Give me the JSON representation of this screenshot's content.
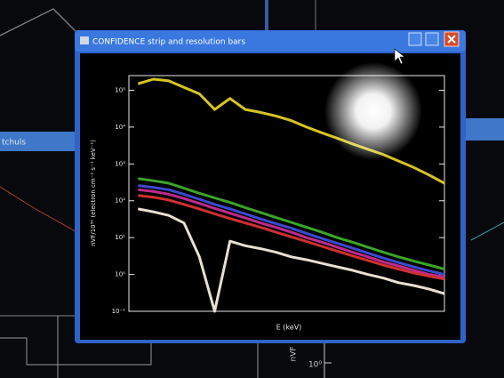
{
  "window": {
    "title": "CONFIDENCE strip and resolution bars"
  },
  "background": {
    "left_tab": "tchuls",
    "axis_label": "nVF",
    "tick": "10⁰"
  },
  "chart_data": {
    "type": "line",
    "xlabel": "E (keV)",
    "ylabel": "nVF/10⁵⁰ (electron cm⁻² s⁻¹ keV⁻¹)",
    "x": [
      0,
      1,
      2,
      3,
      4,
      5,
      6,
      7,
      8,
      9,
      10,
      11,
      12,
      13,
      14,
      15,
      16,
      17,
      18,
      19,
      20
    ],
    "xlim": [
      -0.6,
      20
    ],
    "ylim": [
      0.1,
      250000
    ],
    "log_y": true,
    "yticks": [
      {
        "value": 0.1,
        "label": "10⁻¹"
      },
      {
        "value": 1,
        "label": "10⁰"
      },
      {
        "value": 10,
        "label": "10¹"
      },
      {
        "value": 100,
        "label": "10²"
      },
      {
        "value": 1000,
        "label": "10³"
      },
      {
        "value": 10000,
        "label": "10⁴"
      },
      {
        "value": 100000,
        "label": "10⁵"
      }
    ],
    "series": [
      {
        "color": "#d8c420",
        "values": [
          150000,
          200000,
          180000,
          120000,
          80000,
          30000,
          60000,
          30000,
          25000,
          20000,
          15000,
          10000,
          7000,
          5000,
          3500,
          2500,
          1800,
          1200,
          800,
          500,
          300
        ]
      },
      {
        "color": "#3aa52a",
        "values": [
          400,
          350,
          300,
          220,
          160,
          120,
          90,
          65,
          48,
          35,
          26,
          19,
          14,
          10,
          7.5,
          5.5,
          4,
          3,
          2.3,
          1.8,
          1.4
        ]
      },
      {
        "color": "#3a4ad0",
        "values": [
          260,
          230,
          200,
          150,
          110,
          80,
          60,
          44,
          32,
          24,
          18,
          13,
          9.5,
          7,
          5.2,
          3.8,
          2.8,
          2.1,
          1.6,
          1.25,
          1
        ]
      },
      {
        "color": "#c02a8a",
        "values": [
          200,
          180,
          150,
          115,
          85,
          62,
          46,
          34,
          25,
          19,
          14,
          10,
          7.5,
          5.5,
          4,
          3,
          2.2,
          1.7,
          1.3,
          1,
          0.85
        ]
      },
      {
        "color": "#d03030",
        "values": [
          140,
          125,
          105,
          80,
          60,
          44,
          33,
          25,
          19,
          14,
          10.5,
          7.8,
          5.8,
          4.3,
          3.2,
          2.4,
          1.8,
          1.4,
          1.1,
          0.9,
          0.75
        ]
      },
      {
        "color": "#e8e0d0",
        "values": [
          60,
          50,
          40,
          25,
          3,
          0.1,
          8,
          6,
          5,
          4,
          3,
          2.5,
          2,
          1.6,
          1.3,
          1,
          0.8,
          0.6,
          0.5,
          0.4,
          0.3
        ]
      }
    ]
  }
}
